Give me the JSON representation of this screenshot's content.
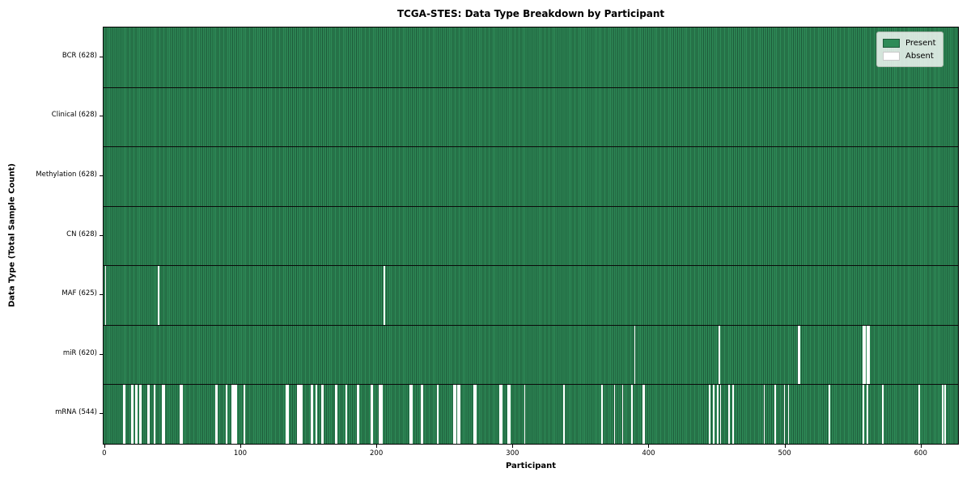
{
  "chart_data": {
    "type": "heatmap",
    "title": "TCGA-STES: Data Type Breakdown by Participant",
    "xlabel": "Participant",
    "ylabel": "Data Type (Total Sample Count)",
    "n_participants": 628,
    "x_ticks": [
      0,
      100,
      200,
      300,
      400,
      500,
      600
    ],
    "x_range": [
      -0.5,
      627.5
    ],
    "grid": false,
    "legend_position": "upper right",
    "colors": {
      "present": "#2e8b57",
      "present_edge": "#1d5939",
      "absent": "#ffffff"
    },
    "legend": [
      {
        "label": "Present",
        "color": "#2e8b57",
        "edge": "#1d5939"
      },
      {
        "label": "Absent",
        "color": "#ffffff",
        "edge": "#c8c8c8"
      }
    ],
    "rows": [
      {
        "data_type": "BCR",
        "label": "BCR (628)",
        "present_count": 628,
        "absent_count": 0,
        "absent_indices": []
      },
      {
        "data_type": "Clinical",
        "label": "Clinical (628)",
        "present_count": 628,
        "absent_count": 0,
        "absent_indices": []
      },
      {
        "data_type": "Methylation",
        "label": "Methylation (628)",
        "present_count": 628,
        "absent_count": 0,
        "absent_indices": []
      },
      {
        "data_type": "CN",
        "label": "CN (628)",
        "present_count": 628,
        "absent_count": 0,
        "absent_indices": []
      },
      {
        "data_type": "MAF",
        "label": "MAF (625)",
        "present_count": 625,
        "absent_count": 3,
        "absent_indices": [
          1,
          40,
          206
        ]
      },
      {
        "data_type": "miR",
        "label": "miR (620)",
        "present_count": 620,
        "absent_count": 8,
        "absent_indices": [
          390,
          452,
          510,
          511,
          558,
          559,
          561,
          562
        ]
      },
      {
        "data_type": "mRNA",
        "label": "mRNA (544)",
        "present_count": 544,
        "absent_count": 84,
        "absent_indices": [
          14,
          15,
          20,
          21,
          23,
          24,
          26,
          27,
          32,
          33,
          37,
          43,
          44,
          56,
          57,
          82,
          83,
          90,
          94,
          95,
          96,
          97,
          103,
          134,
          135,
          142,
          143,
          144,
          145,
          152,
          153,
          156,
          160,
          161,
          170,
          171,
          178,
          186,
          187,
          196,
          197,
          202,
          203,
          204,
          225,
          226,
          233,
          234,
          245,
          257,
          258,
          260,
          261,
          272,
          273,
          291,
          292,
          297,
          298,
          309,
          338,
          366,
          375,
          381,
          388,
          396,
          397,
          445,
          448,
          451,
          453,
          459,
          462,
          485,
          493,
          500,
          503,
          533,
          558,
          561,
          572,
          599,
          616,
          618
        ]
      }
    ]
  }
}
